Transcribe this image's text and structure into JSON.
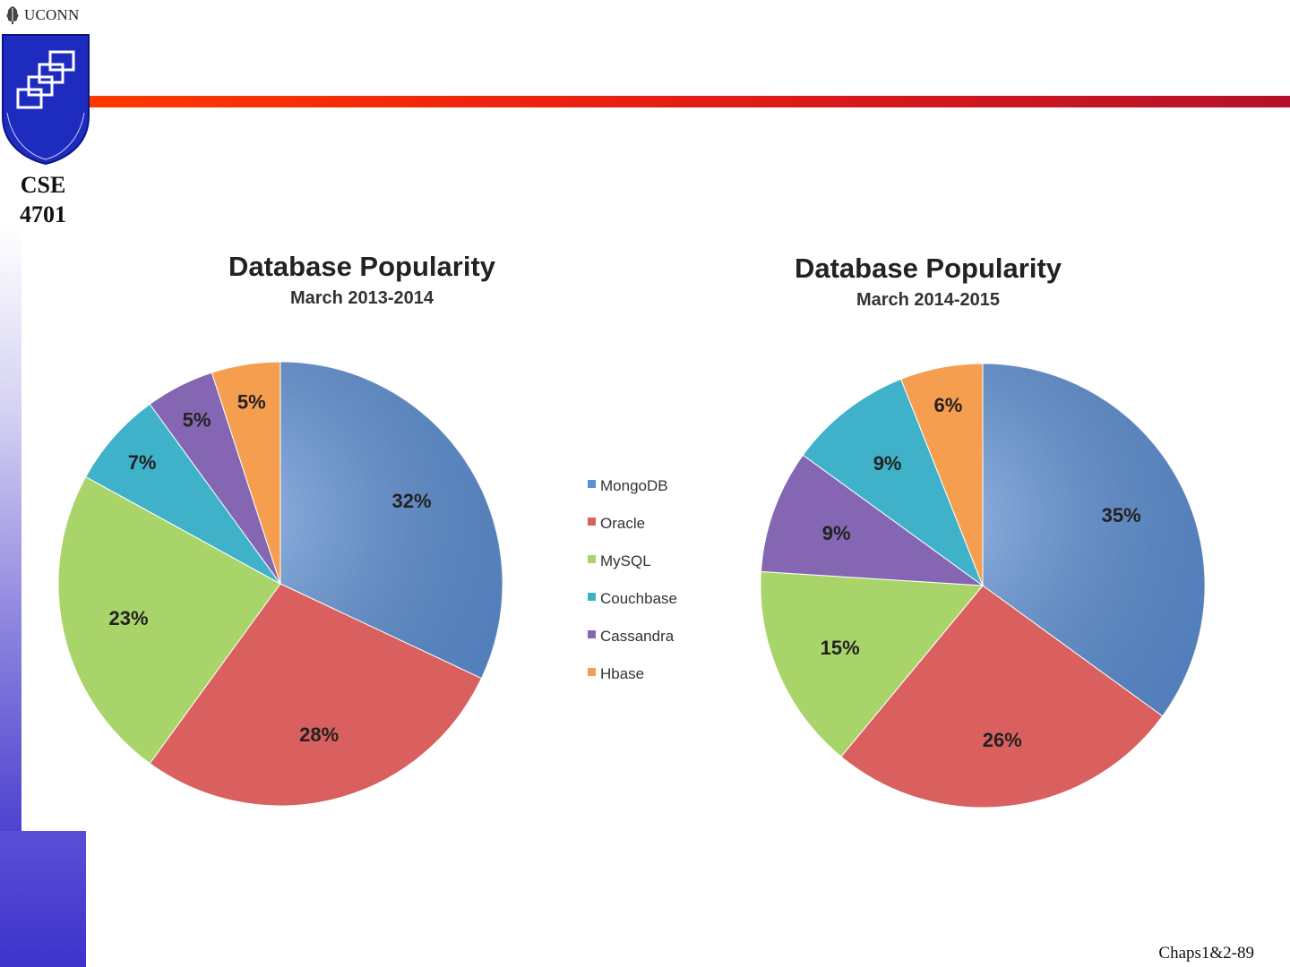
{
  "slide": {
    "institution": "UCONN",
    "course_line1": "CSE",
    "course_line2": "4701",
    "footer": "Chaps1&2-89"
  },
  "legend": {
    "items": [
      {
        "label": "MongoDB",
        "color": "#5b8fd6"
      },
      {
        "label": "Oracle",
        "color": "#d9605e"
      },
      {
        "label": "MySQL",
        "color": "#a9d46a"
      },
      {
        "label": "Couchbase",
        "color": "#3fb2c9"
      },
      {
        "label": "Cassandra",
        "color": "#8466b3"
      },
      {
        "label": "Hbase",
        "color": "#f59e50"
      }
    ]
  },
  "chart_data": [
    {
      "type": "pie",
      "title": "Database Popularity",
      "subtitle": "March 2013-2014",
      "categories": [
        "MongoDB",
        "Oracle",
        "MySQL",
        "Couchbase",
        "Cassandra",
        "Hbase"
      ],
      "values": [
        32,
        28,
        23,
        7,
        5,
        5
      ],
      "labels": [
        "32%",
        "28%",
        "23%",
        "7%",
        "5%",
        "5%"
      ]
    },
    {
      "type": "pie",
      "title": "Database Popularity",
      "subtitle": "March 2014-2015",
      "categories": [
        "MongoDB",
        "Oracle",
        "MySQL",
        "Cassandra",
        "Couchbase",
        "Hbase"
      ],
      "values": [
        35,
        26,
        15,
        9,
        9,
        6
      ],
      "labels": [
        "35%",
        "26%",
        "15%",
        "9%",
        "9%",
        "6%"
      ]
    }
  ]
}
